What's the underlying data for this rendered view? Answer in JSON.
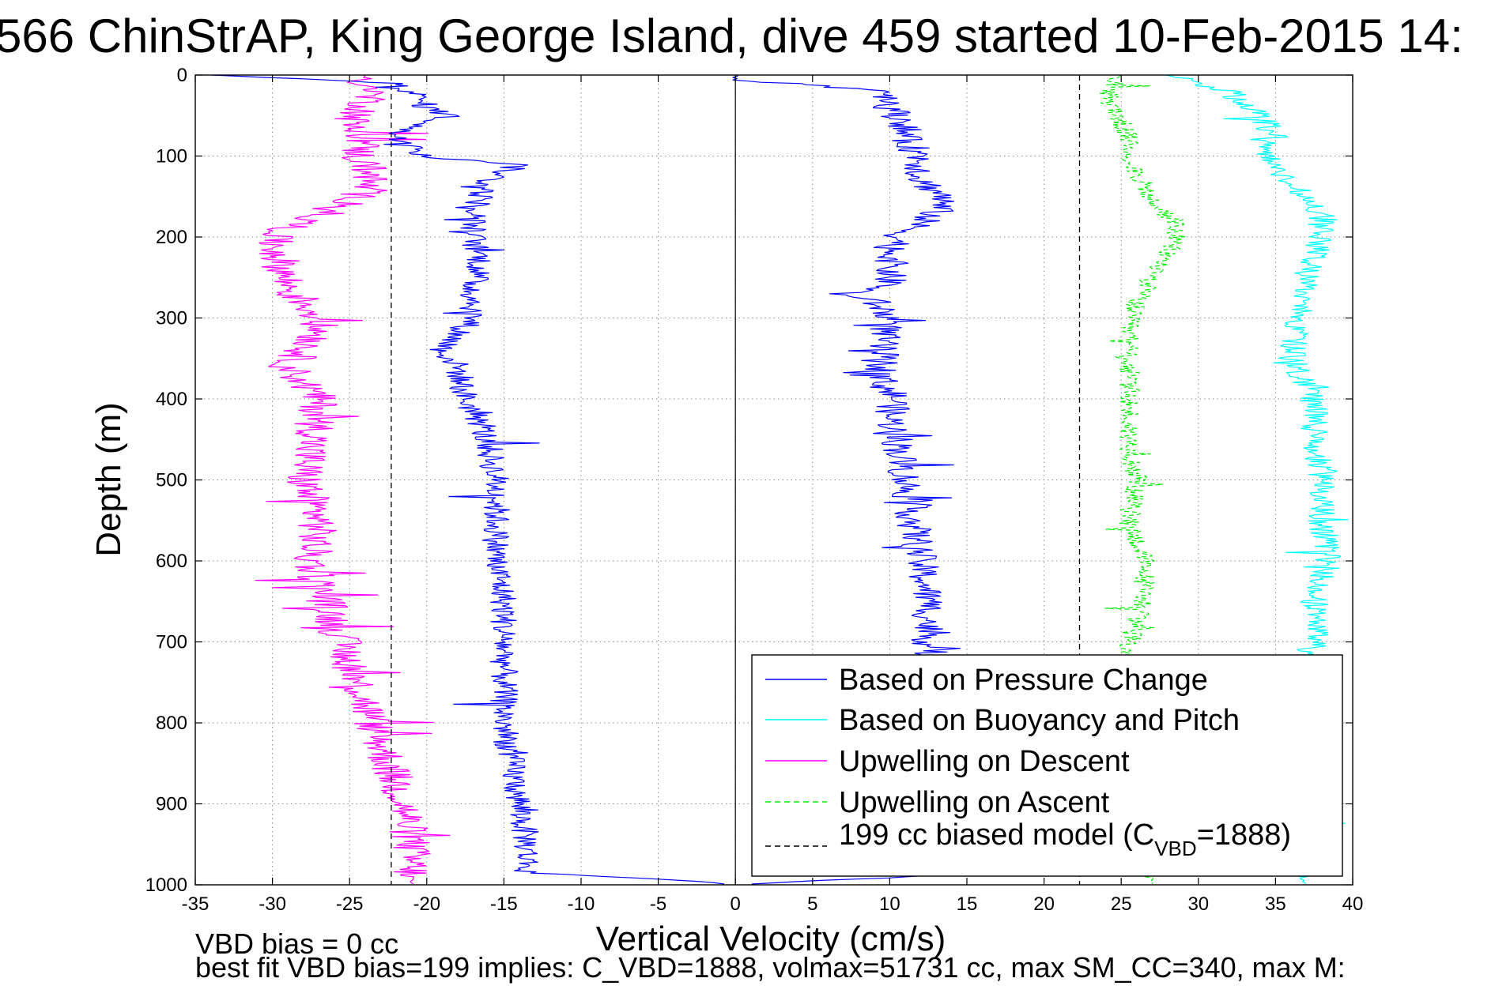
{
  "chart_data": {
    "type": "line",
    "title": "566 ChinStrAP, King George Island, dive 459 started 10-Feb-2015 14:",
    "xlabel": "Vertical Velocity (cm/s)",
    "ylabel": "Depth (m)",
    "xlim": [
      -35,
      40
    ],
    "ylim": [
      0,
      1000
    ],
    "y_reversed": true,
    "grid": true,
    "x_ticks": [
      -35,
      -30,
      -25,
      -20,
      -15,
      -10,
      -5,
      0,
      5,
      10,
      15,
      20,
      25,
      30,
      35,
      40
    ],
    "y_ticks": [
      0,
      100,
      200,
      300,
      400,
      500,
      600,
      700,
      800,
      900,
      1000
    ],
    "legend_position": "bottom-right",
    "model_line_x": [
      -22.3,
      22.3
    ],
    "series": [
      {
        "name": "Based on Pressure Change",
        "color": "#0000ff",
        "style": "solid",
        "jitter": [
          0.9,
          1.1
        ],
        "descent": {
          "depth": [
            0,
            5,
            10,
            20,
            40,
            50,
            60,
            70,
            80,
            90,
            100,
            110,
            130,
            150,
            180,
            200,
            230,
            260,
            300,
            340,
            360,
            400,
            430,
            460,
            500,
            550,
            600,
            650,
            700,
            750,
            800,
            850,
            900,
            950,
            985,
            990,
            995,
            1000
          ],
          "velocity": [
            -34,
            -28,
            -22,
            -21,
            -20,
            -18.5,
            -20,
            -22,
            -21.5,
            -20,
            -20.5,
            -14,
            -16,
            -16.5,
            -17,
            -17,
            -16.5,
            -17,
            -17,
            -19,
            -18,
            -17.5,
            -16.5,
            -16,
            -15.5,
            -15.5,
            -15.5,
            -15,
            -15,
            -15,
            -15,
            -14.5,
            -14,
            -13.5,
            -13.5,
            -8,
            -3,
            0
          ]
        },
        "ascent": {
          "depth": [
            1000,
            995,
            990,
            985,
            950,
            900,
            850,
            800,
            750,
            700,
            650,
            600,
            550,
            500,
            450,
            420,
            400,
            380,
            350,
            330,
            300,
            280,
            270,
            260,
            240,
            200,
            170,
            150,
            130,
            100,
            80,
            60,
            40,
            20,
            5,
            0
          ],
          "velocity": [
            0,
            5,
            12,
            13,
            13,
            13.5,
            13,
            13,
            13,
            12.5,
            12.5,
            12,
            11.5,
            11,
            10.5,
            10,
            10.5,
            9.5,
            9.5,
            9.5,
            10,
            9,
            7,
            10,
            10,
            10.5,
            13,
            13.5,
            12,
            12,
            11,
            11,
            10,
            10,
            0,
            0
          ]
        }
      },
      {
        "name": "Based on Buoyancy and Pitch",
        "color": "#00ffff",
        "style": "solid",
        "jitter": [
          0.6,
          0.9
        ],
        "ascent": {
          "depth": [
            1000,
            990,
            950,
            900,
            850,
            800,
            780,
            760,
            740,
            720,
            700,
            650,
            600,
            550,
            500,
            450,
            400,
            380,
            350,
            300,
            250,
            200,
            170,
            150,
            120,
            100,
            80,
            50,
            20,
            10,
            0
          ],
          "velocity": [
            37,
            36.5,
            36,
            36.5,
            37,
            37.5,
            38,
            38.5,
            38,
            37,
            37.5,
            37.5,
            38.5,
            38,
            38,
            37.5,
            37.5,
            37,
            36,
            36.5,
            37,
            38,
            38,
            37,
            35,
            34.5,
            35,
            34,
            32,
            30,
            28
          ]
        }
      },
      {
        "name": "Upwelling on Descent",
        "color": "#ff00ff",
        "style": "solid",
        "jitter": [
          1.3,
          1.6
        ],
        "descent": {
          "depth": [
            0,
            5,
            10,
            20,
            40,
            60,
            80,
            100,
            120,
            140,
            160,
            180,
            200,
            230,
            260,
            280,
            300,
            320,
            340,
            360,
            380,
            400,
            430,
            460,
            500,
            550,
            600,
            650,
            700,
            750,
            800,
            850,
            900,
            950,
            1000
          ],
          "velocity": [
            -24,
            -24,
            -24,
            -23.5,
            -24,
            -25,
            -24,
            -24.5,
            -23.5,
            -24,
            -25,
            -28,
            -30,
            -29.5,
            -29,
            -28,
            -27,
            -27,
            -28,
            -29,
            -28,
            -27,
            -27,
            -27.5,
            -28,
            -27,
            -27.5,
            -26.5,
            -25.5,
            -24.5,
            -23.5,
            -22.5,
            -21.5,
            -21,
            -21
          ]
        }
      },
      {
        "name": "Upwelling on Ascent",
        "color": "#00ee00",
        "style": "dashed",
        "jitter": [
          0.9,
          0.7
        ],
        "ascent": {
          "depth": [
            1000,
            990,
            950,
            900,
            850,
            800,
            750,
            710,
            700,
            650,
            600,
            550,
            500,
            450,
            400,
            350,
            320,
            300,
            280,
            250,
            220,
            200,
            180,
            160,
            140,
            120,
            100,
            80,
            60,
            40,
            20,
            10,
            0
          ],
          "velocity": [
            27,
            27,
            27.5,
            27,
            27,
            26.5,
            26,
            25.5,
            25.5,
            26.5,
            26.5,
            25.5,
            26,
            25.5,
            25.5,
            25.5,
            25.5,
            25.5,
            26,
            27,
            28,
            28.5,
            28.5,
            27,
            26.5,
            26,
            25.5,
            25.5,
            25,
            24.5,
            24,
            24.5,
            25
          ]
        }
      },
      {
        "name": "199 cc biased model (C",
        "name_subscript": "VBD",
        "name_suffix": "=1888)",
        "color": "#000000",
        "style": "dashed"
      }
    ]
  },
  "footer": {
    "line1": "VBD bias = 0 cc",
    "line2": "best fit VBD bias=199 implies: C_VBD=1888, volmax=51731 cc, max SM_CC=340, max M:"
  }
}
